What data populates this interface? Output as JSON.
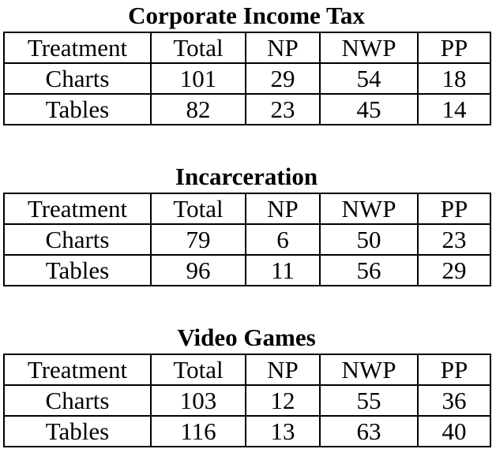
{
  "columns": [
    "Treatment",
    "Total",
    "NP",
    "NWP",
    "PP"
  ],
  "tables": [
    {
      "title": "Corporate Income Tax",
      "rows": [
        [
          "Charts",
          "101",
          "29",
          "54",
          "18"
        ],
        [
          "Tables",
          "82",
          "23",
          "45",
          "14"
        ]
      ]
    },
    {
      "title": "Incarceration",
      "rows": [
        [
          "Charts",
          "79",
          "6",
          "50",
          "23"
        ],
        [
          "Tables",
          "96",
          "11",
          "56",
          "29"
        ]
      ]
    },
    {
      "title": "Video Games",
      "rows": [
        [
          "Charts",
          "103",
          "12",
          "55",
          "36"
        ],
        [
          "Tables",
          "116",
          "13",
          "63",
          "40"
        ]
      ]
    }
  ]
}
